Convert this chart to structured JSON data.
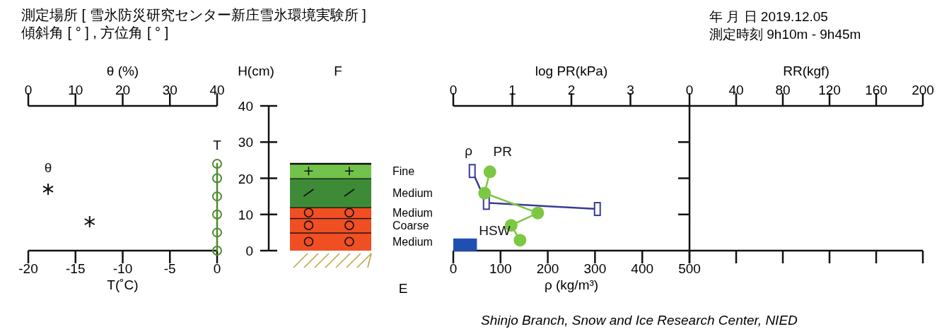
{
  "chart_data": [
    {
      "type": "line",
      "title": "測定場所 [ 雪氷防災研究センター新庄雪氷環境実験所 ]",
      "subtitle": "傾斜角 [ ° ] , 方位角 [ ° ]",
      "orientation": "horizontal",
      "xlabel": "T(˚C)",
      "x2label": "θ (%)",
      "xlim": [
        -20,
        0
      ],
      "xticks": [
        -20,
        -15,
        -10,
        -5,
        0
      ],
      "x2lim": [
        0,
        40
      ],
      "x2ticks": [
        0,
        10,
        20,
        30,
        40
      ],
      "ylim": [
        0,
        40
      ],
      "tick_labels": "x",
      "series": [
        {
          "name": "T",
          "type": "line",
          "color": "#4f8a2e",
          "marker": "circle",
          "x": [
            0,
            5,
            10,
            15,
            20,
            24
          ],
          "values": [
            0,
            0,
            0,
            0,
            0,
            0
          ]
        },
        {
          "name": "θ",
          "type": "scatter",
          "axis": "x2",
          "color": "#111111",
          "marker": "cross",
          "x": [
            17,
            8
          ],
          "values": [
            4.2,
            13
          ]
        }
      ]
    },
    {
      "type": "bar",
      "stacked": true,
      "ylabel": "H(cm)",
      "categories": [
        null
      ],
      "ylim": [
        0,
        40
      ],
      "yticks": [
        0,
        10,
        20,
        30,
        40
      ],
      "annotations": [
        "F",
        "E"
      ],
      "series": [
        {
          "name": "Medium",
          "color": "#f04e23",
          "values": [
            5
          ]
        },
        {
          "name": "Coarse",
          "color": "#f04e23",
          "values": [
            4
          ]
        },
        {
          "name": "Medium",
          "color": "#f04e23",
          "values": [
            3
          ]
        },
        {
          "name": "Medium",
          "color": "#3d8b37",
          "values": [
            8
          ]
        },
        {
          "name": "Fine",
          "color": "#72c34b",
          "values": [
            4
          ]
        }
      ]
    },
    {
      "type": "line",
      "orientation": "horizontal",
      "xlabel": "ρ (kg/m³)",
      "x2label": "log PR(kPa)",
      "xlim": [
        0,
        500
      ],
      "xticks": [
        0,
        100,
        200,
        300,
        400,
        500
      ],
      "x2lim": [
        0,
        4
      ],
      "x2ticks": [
        0,
        1,
        2,
        3
      ],
      "ylim": [
        0,
        40
      ],
      "tick_labels": "x",
      "annotations": [
        "Shinjo Branch, Snow and Ice Research Center, NIED"
      ],
      "series": [
        {
          "name": "ρ",
          "type": "line",
          "color": "#3a3a9a",
          "marker": "square",
          "x": [
            22,
            13.2,
            11.5
          ],
          "values": [
            40,
            70,
            305
          ]
        },
        {
          "name": "PR",
          "type": "line",
          "axis": "x2",
          "color": "#7dc843",
          "marker": "circle",
          "x": [
            21.8,
            15.9,
            10.4,
            7,
            2.9
          ],
          "values": [
            0.62,
            0.53,
            1.43,
            0.98,
            1.13
          ]
        },
        {
          "name": "HSW",
          "type": "bar",
          "color": "#1f4fb3",
          "x": [
            1.6
          ],
          "values": [
            50
          ]
        }
      ]
    },
    {
      "type": "line",
      "orientation": "horizontal",
      "xlabel": "RR(kgf)",
      "xlim": [
        0,
        200
      ],
      "xticks": [
        0,
        40,
        80,
        120,
        160,
        200
      ],
      "tick_labels": "x",
      "ylim": [
        0,
        40
      ],
      "yticks": [
        {
          "value": 10,
          "label": null
        },
        {
          "value": 20,
          "label": null
        },
        {
          "value": 30,
          "label": null
        }
      ],
      "annotations": [
        "年 月 日  2019.12.05",
        "測定時刻  9h10m - 9h45m"
      ]
    }
  ]
}
